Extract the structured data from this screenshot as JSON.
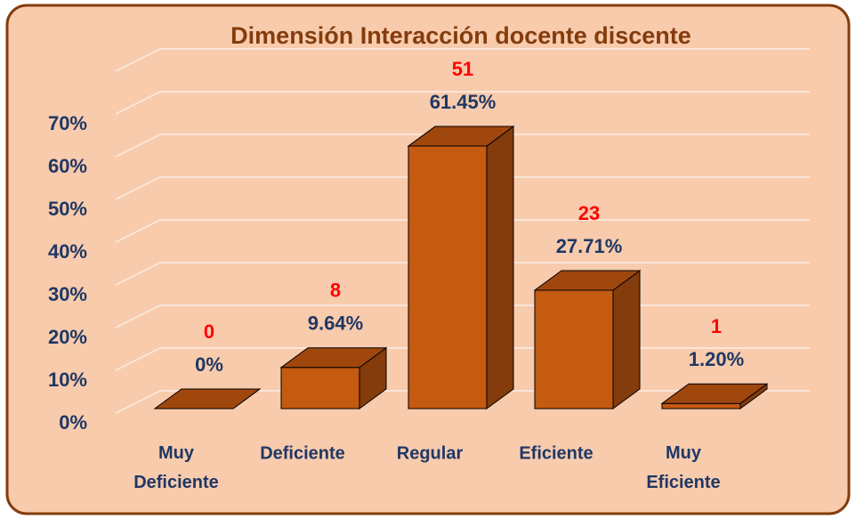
{
  "chart_data": {
    "type": "bar3d",
    "title": "Dimensión Interacción docente discente",
    "categories": [
      "Muy Deficiente",
      "Deficiente",
      "Regular",
      "Eficiente",
      "Muy Eficiente"
    ],
    "values": [
      0,
      9.64,
      61.45,
      27.71,
      1.2
    ],
    "value_labels": [
      "0%",
      "9.64%",
      "61.45%",
      "27.71%",
      "1.20%"
    ],
    "counts": [
      0,
      8,
      51,
      23,
      1
    ],
    "color": "#c55a11",
    "ylim": [
      0,
      80
    ],
    "yticks": [
      {
        "value": 0,
        "label": "0%"
      },
      {
        "value": 10,
        "label": "10%"
      },
      {
        "value": 20,
        "label": "20%"
      },
      {
        "value": 30,
        "label": "30%"
      },
      {
        "value": 40,
        "label": "40%"
      },
      {
        "value": 50,
        "label": "50%"
      },
      {
        "value": 60,
        "label": "60%"
      },
      {
        "value": 70,
        "label": "70%"
      }
    ],
    "grid": true
  }
}
